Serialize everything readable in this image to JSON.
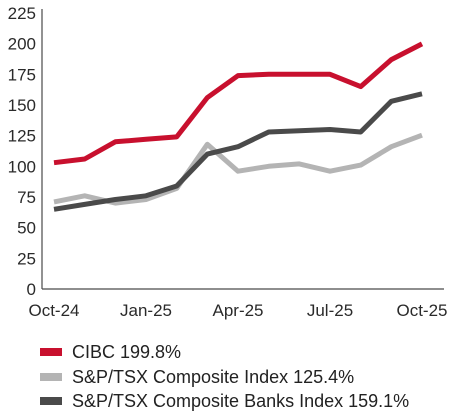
{
  "chart_data": {
    "type": "line",
    "title": "",
    "xlabel": "",
    "ylabel": "",
    "x": [
      "Oct-24",
      "Nov-24",
      "Dec-24",
      "Jan-25",
      "Feb-25",
      "Mar-25",
      "Apr-25",
      "May-25",
      "Jun-25",
      "Jul-25",
      "Aug-25",
      "Sep-25",
      "Oct-25"
    ],
    "x_tick_labels": [
      "Oct-24",
      "Jan-25",
      "Apr-25",
      "Jul-25",
      "Oct-25"
    ],
    "ylim": [
      0,
      225
    ],
    "y_ticks": [
      0,
      25,
      50,
      75,
      100,
      125,
      150,
      175,
      200,
      225
    ],
    "grid": false,
    "legend_position": "bottom",
    "series": [
      {
        "name": "CIBC 199.8%",
        "color": "#c8102e",
        "values": [
          103,
          106,
          120,
          122,
          124,
          156,
          174,
          175,
          175,
          175,
          165,
          187,
          199.8
        ]
      },
      {
        "name": "S&P/TSX Composite Index 125.4%",
        "color": "#b4b4b4",
        "values": [
          71,
          76,
          70,
          73,
          82,
          118,
          96,
          100,
          102,
          96,
          101,
          116,
          125.4
        ]
      },
      {
        "name": "S&P/TSX Composite Banks Index 159.1%",
        "color": "#4a4a4a",
        "values": [
          65,
          69,
          73,
          76,
          84,
          110,
          116,
          128,
          129,
          130,
          128,
          153,
          159.1
        ]
      }
    ]
  }
}
